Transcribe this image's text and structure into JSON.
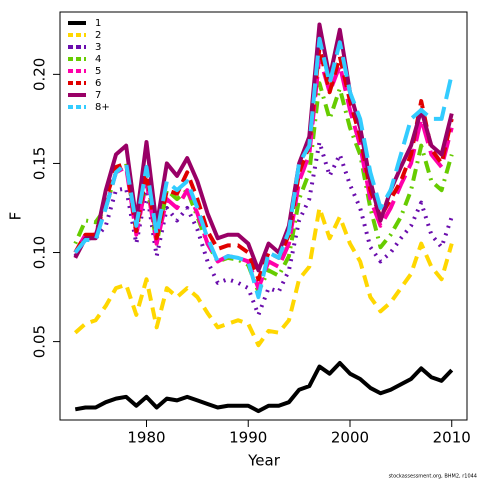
{
  "chart_data": {
    "type": "line",
    "x_label": "Year",
    "y_label": "F",
    "footnote": "stockassessment.org, BHM2, r1044",
    "x": [
      1973,
      1974,
      1975,
      1976,
      1977,
      1978,
      1979,
      1980,
      1981,
      1982,
      1983,
      1984,
      1985,
      1986,
      1987,
      1988,
      1989,
      1990,
      1991,
      1992,
      1993,
      1994,
      1995,
      1996,
      1997,
      1998,
      1999,
      2000,
      2001,
      2002,
      2003,
      2004,
      2005,
      2006,
      2007,
      2008,
      2009,
      2010
    ],
    "xlim": [
      1971.5,
      2011.5
    ],
    "xticks": [
      1980,
      1990,
      2000,
      2010
    ],
    "ylim": [
      0.006,
      0.235
    ],
    "yticks": [
      {
        "value": 0.05,
        "label": "0.05"
      },
      {
        "value": 0.1,
        "label": "0.10"
      },
      {
        "value": 0.15,
        "label": "0.15"
      },
      {
        "value": 0.2,
        "label": "0.20"
      }
    ],
    "series": [
      {
        "name": "1",
        "color": "#000000",
        "linestyle": "solid",
        "values": [
          0.012,
          0.013,
          0.013,
          0.016,
          0.018,
          0.019,
          0.014,
          0.019,
          0.013,
          0.018,
          0.017,
          0.019,
          0.017,
          0.015,
          0.013,
          0.014,
          0.014,
          0.014,
          0.011,
          0.014,
          0.014,
          0.016,
          0.023,
          0.025,
          0.036,
          0.032,
          0.038,
          0.032,
          0.029,
          0.024,
          0.021,
          0.023,
          0.026,
          0.029,
          0.035,
          0.03,
          0.028,
          0.034
        ]
      },
      {
        "name": "2",
        "color": "#FFD700",
        "linestyle": "dashed",
        "values": [
          0.055,
          0.06,
          0.062,
          0.07,
          0.08,
          0.082,
          0.065,
          0.085,
          0.058,
          0.08,
          0.075,
          0.08,
          0.075,
          0.066,
          0.058,
          0.06,
          0.062,
          0.06,
          0.048,
          0.056,
          0.055,
          0.062,
          0.085,
          0.092,
          0.125,
          0.108,
          0.12,
          0.105,
          0.095,
          0.075,
          0.067,
          0.072,
          0.08,
          0.088,
          0.105,
          0.092,
          0.085,
          0.105
        ]
      },
      {
        "name": "3",
        "color": "#6A0DAD",
        "linestyle": "dotted",
        "values": [
          0.098,
          0.108,
          0.108,
          0.115,
          0.135,
          0.136,
          0.105,
          0.135,
          0.098,
          0.125,
          0.118,
          0.125,
          0.113,
          0.095,
          0.083,
          0.085,
          0.083,
          0.08,
          0.065,
          0.08,
          0.078,
          0.09,
          0.118,
          0.13,
          0.162,
          0.143,
          0.155,
          0.138,
          0.125,
          0.103,
          0.095,
          0.1,
          0.108,
          0.115,
          0.128,
          0.11,
          0.103,
          0.12
        ]
      },
      {
        "name": "4",
        "color": "#66CC00",
        "linestyle": "dotdash",
        "values": [
          0.105,
          0.118,
          0.117,
          0.125,
          0.145,
          0.15,
          0.112,
          0.14,
          0.105,
          0.135,
          0.13,
          0.135,
          0.12,
          0.105,
          0.095,
          0.097,
          0.096,
          0.093,
          0.078,
          0.09,
          0.087,
          0.098,
          0.13,
          0.145,
          0.195,
          0.175,
          0.192,
          0.17,
          0.155,
          0.125,
          0.103,
          0.11,
          0.12,
          0.135,
          0.16,
          0.14,
          0.135,
          0.155
        ]
      },
      {
        "name": "5",
        "color": "#FF00AA",
        "linestyle": "longdash",
        "values": [
          0.1,
          0.11,
          0.11,
          0.125,
          0.145,
          0.148,
          0.11,
          0.14,
          0.105,
          0.13,
          0.125,
          0.135,
          0.122,
          0.105,
          0.095,
          0.098,
          0.097,
          0.095,
          0.08,
          0.095,
          0.092,
          0.105,
          0.14,
          0.155,
          0.21,
          0.19,
          0.205,
          0.18,
          0.16,
          0.13,
          0.115,
          0.125,
          0.138,
          0.15,
          0.175,
          0.155,
          0.148,
          0.17
        ]
      },
      {
        "name": "6",
        "color": "#E00000",
        "linestyle": "dashed",
        "values": [
          0.1,
          0.11,
          0.11,
          0.13,
          0.148,
          0.15,
          0.112,
          0.145,
          0.108,
          0.135,
          0.133,
          0.145,
          0.13,
          0.112,
          0.102,
          0.104,
          0.104,
          0.1,
          0.085,
          0.1,
          0.097,
          0.11,
          0.145,
          0.16,
          0.215,
          0.19,
          0.21,
          0.185,
          0.165,
          0.135,
          0.12,
          0.13,
          0.14,
          0.155,
          0.185,
          0.158,
          0.15,
          0.175
        ]
      },
      {
        "name": "7",
        "color": "#990066",
        "linestyle": "solid",
        "values": [
          0.097,
          0.108,
          0.108,
          0.135,
          0.155,
          0.16,
          0.118,
          0.162,
          0.115,
          0.15,
          0.143,
          0.153,
          0.14,
          0.122,
          0.108,
          0.11,
          0.11,
          0.105,
          0.09,
          0.105,
          0.1,
          0.115,
          0.15,
          0.165,
          0.228,
          0.198,
          0.225,
          0.19,
          0.17,
          0.14,
          0.118,
          0.135,
          0.148,
          0.16,
          0.18,
          0.16,
          0.155,
          0.178
        ]
      },
      {
        "name": "8+",
        "color": "#33CCFF",
        "linestyle": "longdash",
        "values": [
          0.1,
          0.107,
          0.107,
          0.125,
          0.145,
          0.15,
          0.115,
          0.148,
          0.11,
          0.14,
          0.135,
          0.14,
          0.125,
          0.108,
          0.095,
          0.098,
          0.097,
          0.095,
          0.075,
          0.1,
          0.097,
          0.112,
          0.15,
          0.16,
          0.22,
          0.195,
          0.218,
          0.19,
          0.175,
          0.145,
          0.125,
          0.135,
          0.155,
          0.175,
          0.18,
          0.175,
          0.175,
          0.2
        ]
      }
    ]
  }
}
